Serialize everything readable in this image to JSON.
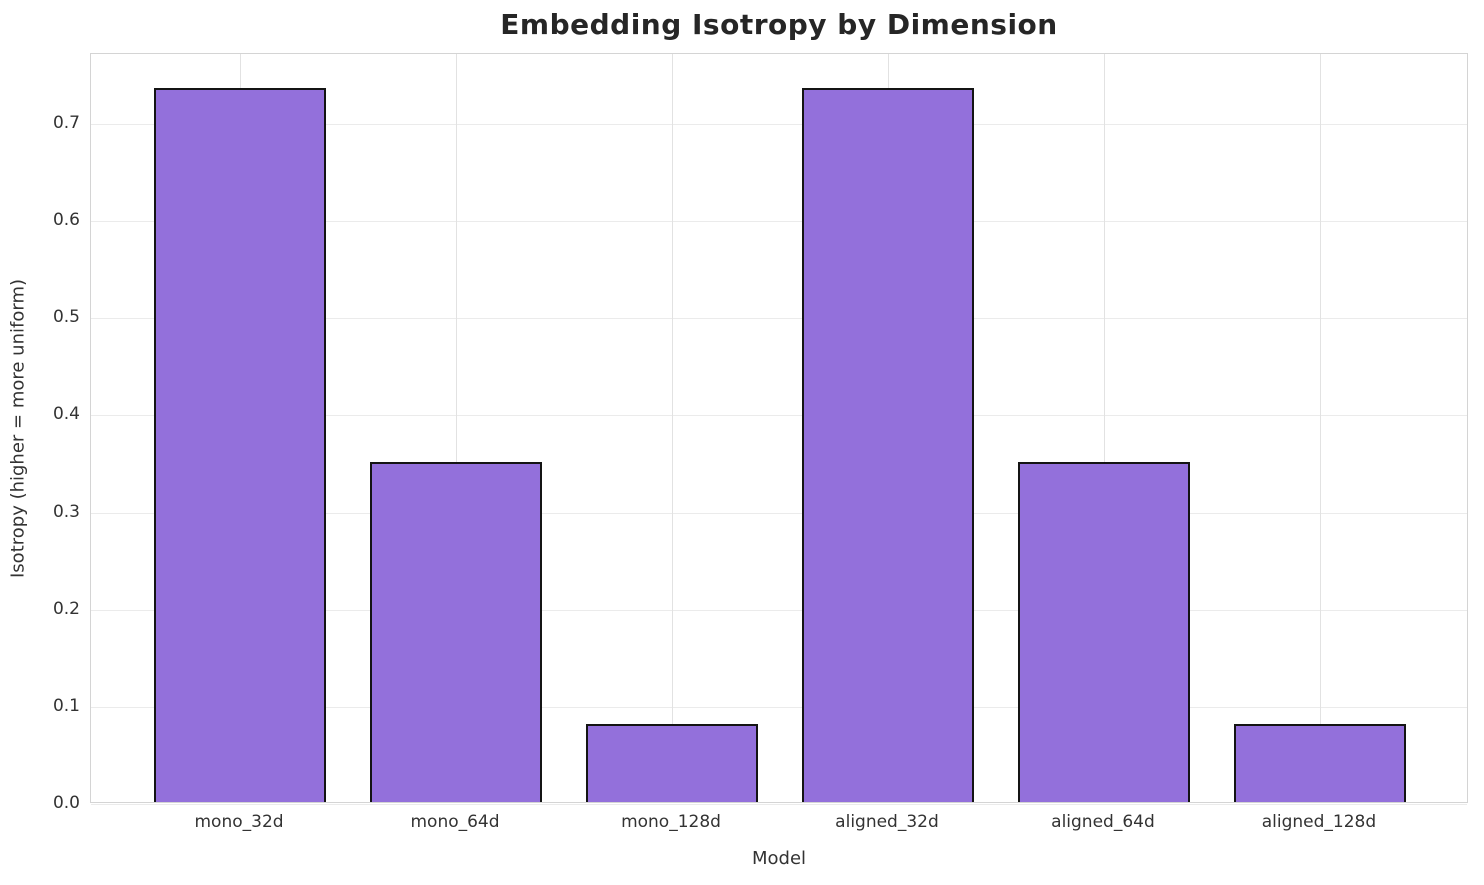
{
  "chart_data": {
    "type": "bar",
    "title": "Embedding Isotropy by Dimension",
    "xlabel": "Model",
    "ylabel": "Isotropy (higher = more uniform)",
    "categories": [
      "mono_32d",
      "mono_64d",
      "mono_128d",
      "aligned_32d",
      "aligned_64d",
      "aligned_128d"
    ],
    "values": [
      0.735,
      0.35,
      0.08,
      0.735,
      0.35,
      0.08
    ],
    "yticks": [
      "0.0",
      "0.1",
      "0.2",
      "0.3",
      "0.4",
      "0.5",
      "0.6",
      "0.7"
    ],
    "ytick_values": [
      0.0,
      0.1,
      0.2,
      0.3,
      0.4,
      0.5,
      0.6,
      0.7
    ],
    "ylim": [
      0,
      0.772
    ],
    "grid": true,
    "legend": "none",
    "bar_color": "#9370DB",
    "bar_edge_color": "#141414",
    "grid_color": "#ebebeb",
    "spine_color": "#d4d4d4",
    "tick_text_color": "#333333",
    "title_color": "#262626"
  }
}
